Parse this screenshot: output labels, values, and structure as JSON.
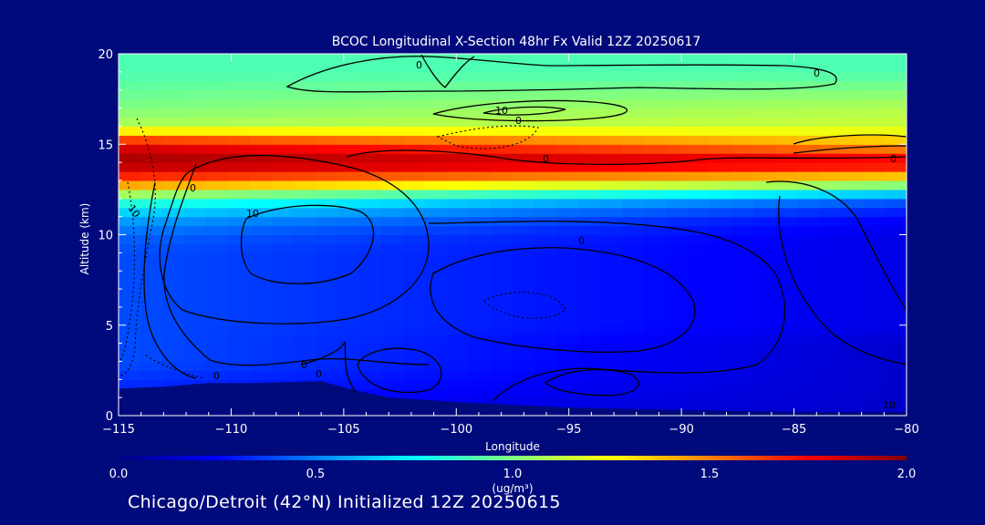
{
  "chart_data": {
    "type": "heatmap",
    "title": "BCOC Longitudinal X-Section 48hr  Fx Valid 12Z 20250617",
    "xlabel": "Longitude",
    "ylabel": "Altitude (km)",
    "xlim": [
      -115,
      -80
    ],
    "ylim": [
      0,
      20
    ],
    "x_ticks": [
      -115,
      -110,
      -105,
      -100,
      -95,
      -90,
      -85,
      -80
    ],
    "x_tick_labels": [
      "−115",
      "−110",
      "−105",
      "−100",
      "−95",
      "−90",
      "−85",
      "−80"
    ],
    "y_ticks": [
      0,
      5,
      10,
      15,
      20
    ],
    "y_tick_labels": [
      "0",
      "5",
      "10",
      "15",
      "20"
    ],
    "colorbar": {
      "label": "(ug/m³)",
      "range": [
        0.0,
        2.0
      ],
      "ticks": [
        0.0,
        0.5,
        1.0,
        1.5,
        2.0
      ],
      "tick_labels": [
        "0.0",
        "0.5",
        "1.0",
        "1.5",
        "2.0"
      ],
      "colormap": [
        "#00007f",
        "#0000ff",
        "#0080ff",
        "#00ffff",
        "#80ff80",
        "#ffff00",
        "#ff8000",
        "#ff0000",
        "#7f0000"
      ]
    },
    "field_profile": {
      "altitudes_km": [
        0,
        1,
        2,
        3,
        4,
        5,
        6,
        7,
        8,
        9,
        10,
        11,
        12,
        13,
        14,
        15,
        16,
        17,
        18,
        19,
        20
      ],
      "west_values": [
        0.2,
        0.3,
        0.35,
        0.4,
        0.4,
        0.4,
        0.4,
        0.4,
        0.4,
        0.4,
        0.45,
        0.6,
        0.9,
        1.6,
        1.95,
        1.8,
        1.1,
        1.0,
        0.95,
        0.9,
        0.9
      ],
      "east_values": [
        0.15,
        0.15,
        0.15,
        0.15,
        0.15,
        0.2,
        0.2,
        0.2,
        0.2,
        0.2,
        0.2,
        0.25,
        0.45,
        1.2,
        1.85,
        1.4,
        1.15,
        1.1,
        1.0,
        0.9,
        0.9
      ]
    },
    "terrain_km": [
      [
        -115,
        1.5
      ],
      [
        -113,
        1.6
      ],
      [
        -111,
        1.8
      ],
      [
        -109,
        1.8
      ],
      [
        -106,
        1.9
      ],
      [
        -104.5,
        1.4
      ],
      [
        -103,
        1.0
      ],
      [
        -100,
        0.75
      ],
      [
        -95,
        0.45
      ],
      [
        -90,
        0.3
      ],
      [
        -85,
        0.2
      ],
      [
        -80,
        0.2
      ]
    ],
    "contour_labels": [
      "0",
      "0",
      "10",
      "0",
      "0",
      "10",
      "10",
      "0",
      "0",
      "0",
      "0",
      "0",
      "0",
      "10"
    ],
    "footer": "Chicago/Detroit (42°N) Initialized 12Z 20250615"
  }
}
